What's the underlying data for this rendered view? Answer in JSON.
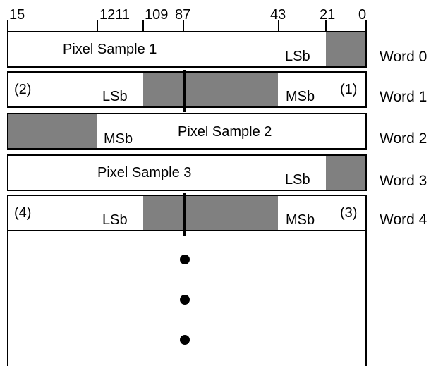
{
  "bit_positions": {
    "b15": "15",
    "b12_11": "1211",
    "b10_9": "109",
    "b8_7": "87",
    "b4_3": "43",
    "b2_1": "21",
    "b0": "0"
  },
  "words": [
    {
      "label": "Word 0",
      "lsb_label": "LSb",
      "sample": "Pixel Sample 1"
    },
    {
      "label": "Word 1",
      "left_note": "(2)",
      "lsb_label": "LSb",
      "msb_label": "MSb",
      "right_note": "(1)"
    },
    {
      "label": "Word 2",
      "msb_label": "MSb",
      "sample": "Pixel Sample 2"
    },
    {
      "label": "Word 3",
      "lsb_label": "LSb",
      "sample": "Pixel Sample 3"
    },
    {
      "label": "Word 4",
      "left_note": "(4)",
      "lsb_label": "LSb",
      "msb_label": "MSb",
      "right_note": "(3)"
    }
  ],
  "continuation": "vertical ellipsis (three dots)",
  "colors": {
    "shaded_fill": "#808080",
    "line": "#000000",
    "background": "#ffffff"
  }
}
